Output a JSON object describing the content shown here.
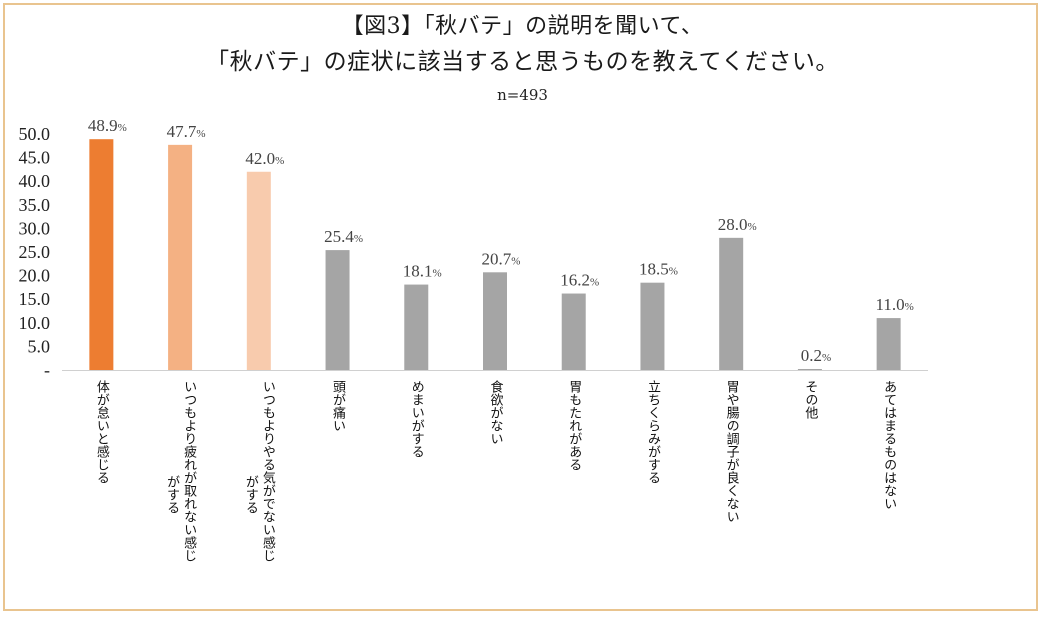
{
  "title_line1": "【図3】「秋バテ」の説明を聞いて、",
  "title_line2": "「秋バテ」の症状に該当すると思うものを教えてください。",
  "subtitle": "n=493",
  "chart_data": {
    "type": "bar",
    "title": "【図3】「秋バテ」の説明を聞いて、「秋バテ」の症状に該当すると思うものを教えてください。",
    "subtitle": "n=493",
    "categories": [
      [
        "体が怠いと感じる"
      ],
      [
        "いつもより疲れが取れない感じ",
        "がする"
      ],
      [
        "いつもよりやる気がでない感じ",
        "がする"
      ],
      [
        "頭が痛い"
      ],
      [
        "めまいがする"
      ],
      [
        "食欲がない"
      ],
      [
        "胃もたれがある"
      ],
      [
        "立ちくらみがする"
      ],
      [
        "胃や腸の調子が良くない"
      ],
      [
        "その他"
      ],
      [
        "あてはまるものはない"
      ]
    ],
    "values": [
      48.9,
      47.7,
      42.0,
      25.4,
      18.1,
      20.7,
      16.2,
      18.5,
      28.0,
      0.2,
      11.0
    ],
    "value_labels": [
      "48.9",
      "47.7",
      "42.0",
      "25.4",
      "18.1",
      "20.7",
      "16.2",
      "18.5",
      "28.0",
      "0.2",
      "11.0"
    ],
    "value_suffix": "%",
    "bar_colors": [
      "#ed7d31",
      "#f4b183",
      "#f8cbad",
      "#a5a5a5",
      "#a5a5a5",
      "#a5a5a5",
      "#a5a5a5",
      "#a5a5a5",
      "#a5a5a5",
      "#a5a5a5",
      "#a5a5a5"
    ],
    "ylim": [
      0,
      50
    ],
    "yticks": [
      "-",
      "5.0",
      "10.0",
      "15.0",
      "20.0",
      "25.0",
      "30.0",
      "35.0",
      "40.0",
      "45.0",
      "50.0"
    ],
    "grid": false
  }
}
